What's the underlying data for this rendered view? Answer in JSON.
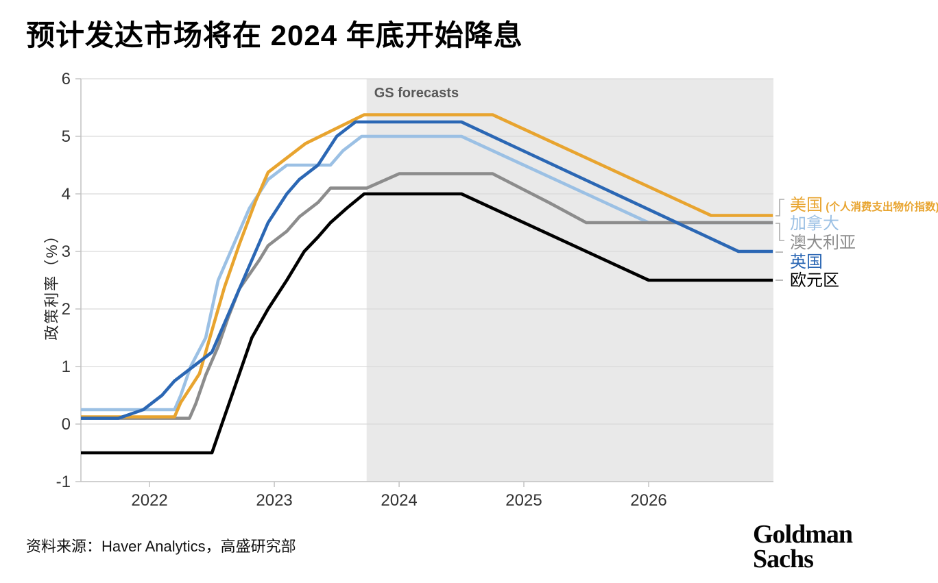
{
  "title": "预计发达市场将在 2024 年底开始降息",
  "source": "资料来源：Haver Analytics，高盛研究部",
  "logo": {
    "line1": "Goldman",
    "line2": "Sachs"
  },
  "colors": {
    "forecast_bg": "#E9E9E9",
    "grid": "#D9D9D9",
    "axis": "#C4C4C4",
    "tick_label": "#333333",
    "forecast_label": "#595959",
    "connector": "#ABABAB"
  },
  "chart_data": {
    "type": "line",
    "title": "预计发达市场将在 2024 年底开始降息",
    "xlabel": "",
    "ylabel": "政策利率（%）",
    "xlim": [
      2021.45,
      2027.0
    ],
    "ylim": [
      -1,
      6
    ],
    "y_ticks": [
      6,
      5,
      4,
      3,
      2,
      1,
      0,
      -1
    ],
    "x_ticks": [
      2022,
      2023,
      2024,
      2025,
      2026
    ],
    "grid": true,
    "legend_position": "right",
    "forecast_label": "GS forecasts",
    "forecast_start": 2023.74,
    "series": [
      {
        "name": "美国",
        "name_suffix": " (个人消费支出物价指数)",
        "color": "#E8A42F",
        "peak": 5.375,
        "end_value": 3.625,
        "points": [
          [
            2021.45,
            0.125
          ],
          [
            2022.2,
            0.125
          ],
          [
            2022.25,
            0.375
          ],
          [
            2022.4,
            0.875
          ],
          [
            2022.5,
            1.625
          ],
          [
            2022.6,
            2.375
          ],
          [
            2022.72,
            3.125
          ],
          [
            2022.85,
            3.875
          ],
          [
            2022.95,
            4.375
          ],
          [
            2023.25,
            4.875
          ],
          [
            2023.72,
            5.375
          ],
          [
            2024.75,
            5.375
          ],
          [
            2026.5,
            3.625
          ],
          [
            2026.995,
            3.625
          ]
        ]
      },
      {
        "name": "加拿大",
        "color": "#9BC0E4",
        "peak": 5.0,
        "end_value": 3.5,
        "points": [
          [
            2021.45,
            0.25
          ],
          [
            2022.2,
            0.25
          ],
          [
            2022.25,
            0.5
          ],
          [
            2022.33,
            1.0
          ],
          [
            2022.45,
            1.5
          ],
          [
            2022.55,
            2.5
          ],
          [
            2022.7,
            3.25
          ],
          [
            2022.8,
            3.75
          ],
          [
            2022.95,
            4.25
          ],
          [
            2023.1,
            4.5
          ],
          [
            2023.45,
            4.5
          ],
          [
            2023.55,
            4.75
          ],
          [
            2023.7,
            5.0
          ],
          [
            2024.5,
            5.0
          ],
          [
            2026.0,
            3.5
          ],
          [
            2026.995,
            3.5
          ]
        ]
      },
      {
        "name": "澳大利亚",
        "color": "#8C8C8C",
        "peak": 4.35,
        "end_value": 3.5,
        "points": [
          [
            2021.45,
            0.1
          ],
          [
            2022.32,
            0.1
          ],
          [
            2022.37,
            0.35
          ],
          [
            2022.45,
            0.85
          ],
          [
            2022.55,
            1.35
          ],
          [
            2022.63,
            1.85
          ],
          [
            2022.72,
            2.35
          ],
          [
            2022.8,
            2.6
          ],
          [
            2022.88,
            2.85
          ],
          [
            2022.95,
            3.1
          ],
          [
            2023.1,
            3.35
          ],
          [
            2023.2,
            3.6
          ],
          [
            2023.35,
            3.85
          ],
          [
            2023.45,
            4.1
          ],
          [
            2023.74,
            4.1
          ],
          [
            2024.0,
            4.35
          ],
          [
            2024.75,
            4.35
          ],
          [
            2025.2,
            3.85
          ],
          [
            2025.5,
            3.5
          ],
          [
            2026.995,
            3.5
          ]
        ]
      },
      {
        "name": "英国",
        "color": "#2B67B4",
        "peak": 5.25,
        "end_value": 3.0,
        "points": [
          [
            2021.45,
            0.1
          ],
          [
            2021.75,
            0.1
          ],
          [
            2021.95,
            0.25
          ],
          [
            2022.1,
            0.5
          ],
          [
            2022.2,
            0.75
          ],
          [
            2022.35,
            1.0
          ],
          [
            2022.5,
            1.25
          ],
          [
            2022.6,
            1.75
          ],
          [
            2022.7,
            2.25
          ],
          [
            2022.85,
            3.0
          ],
          [
            2022.95,
            3.5
          ],
          [
            2023.1,
            4.0
          ],
          [
            2023.2,
            4.25
          ],
          [
            2023.35,
            4.5
          ],
          [
            2023.5,
            5.0
          ],
          [
            2023.65,
            5.25
          ],
          [
            2024.5,
            5.25
          ],
          [
            2026.72,
            3.0
          ],
          [
            2026.995,
            3.0
          ]
        ]
      },
      {
        "name": "欧元区",
        "color": "#000000",
        "peak": 4.0,
        "end_value": 2.5,
        "points": [
          [
            2021.45,
            -0.5
          ],
          [
            2022.5,
            -0.5
          ],
          [
            2022.58,
            0.0
          ],
          [
            2022.7,
            0.75
          ],
          [
            2022.82,
            1.5
          ],
          [
            2022.95,
            2.0
          ],
          [
            2023.1,
            2.5
          ],
          [
            2023.24,
            3.0
          ],
          [
            2023.35,
            3.25
          ],
          [
            2023.45,
            3.5
          ],
          [
            2023.58,
            3.75
          ],
          [
            2023.72,
            4.0
          ],
          [
            2024.5,
            4.0
          ],
          [
            2026.0,
            2.5
          ],
          [
            2026.995,
            2.5
          ]
        ]
      }
    ]
  }
}
